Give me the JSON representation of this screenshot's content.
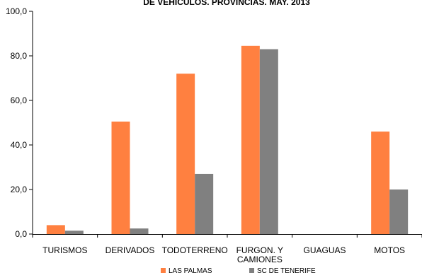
{
  "chart_data": {
    "type": "bar",
    "title": "DE VEHÍCULOS. PROVINCIAS. MAY. 2013",
    "categories": [
      [
        "TURISMOS"
      ],
      [
        "DERIVADOS"
      ],
      [
        "TODOTERRENO"
      ],
      [
        "FURGON. Y",
        "CAMIONES"
      ],
      [
        "GUAGUAS"
      ],
      [
        "MOTOS"
      ]
    ],
    "series": [
      {
        "name": "LAS PALMAS",
        "color": "#ff8040",
        "values": [
          4.0,
          50.5,
          72.0,
          84.5,
          0,
          46.0
        ]
      },
      {
        "name": "SC DE TENERIFE",
        "color": "#808080",
        "values": [
          1.5,
          2.5,
          27.0,
          83.0,
          0,
          20.0
        ]
      }
    ],
    "ylim": [
      0,
      100
    ],
    "yticks": [
      "0,0",
      "20,0",
      "40,0",
      "60,0",
      "80,0",
      "100,0"
    ],
    "grid": false,
    "legend": "bottom"
  }
}
